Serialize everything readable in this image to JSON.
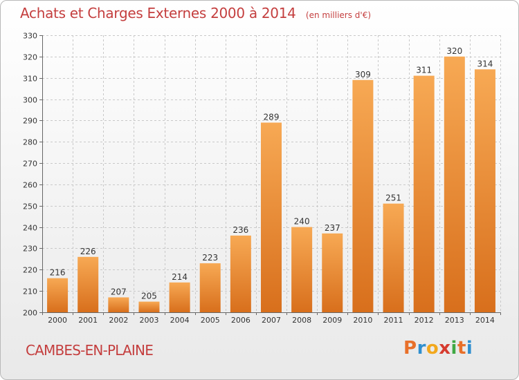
{
  "title": "Achats et Charges Externes 2000 à 2014",
  "subtitle": "(en milliers d'€)",
  "commune": "CAMBES-EN-PLAINE",
  "brand": {
    "letters": [
      "P",
      "r",
      "o",
      "x",
      "i",
      "t",
      "i"
    ],
    "colors": [
      "#e8702a",
      "#2f8fcf",
      "#f2a81d",
      "#d63b2f",
      "#3fa844",
      "#e8702a",
      "#2f8fcf"
    ]
  },
  "colors": {
    "bar_light": "#f7a954",
    "bar_dark": "#d86f1c",
    "title": "#c43e3e",
    "grid": "#c8c8c8"
  },
  "chart_data": {
    "type": "bar",
    "categories": [
      "2000",
      "2001",
      "2002",
      "2003",
      "2004",
      "2005",
      "2006",
      "2007",
      "2008",
      "2009",
      "2010",
      "2011",
      "2012",
      "2013",
      "2014"
    ],
    "values": [
      216,
      226,
      207,
      205,
      214,
      223,
      236,
      289,
      240,
      237,
      309,
      251,
      311,
      320,
      314
    ],
    "ylim": [
      200,
      330
    ],
    "yticks": [
      200,
      210,
      220,
      230,
      240,
      250,
      260,
      270,
      280,
      290,
      300,
      310,
      320,
      330
    ],
    "grid": true,
    "data_labels": true
  }
}
